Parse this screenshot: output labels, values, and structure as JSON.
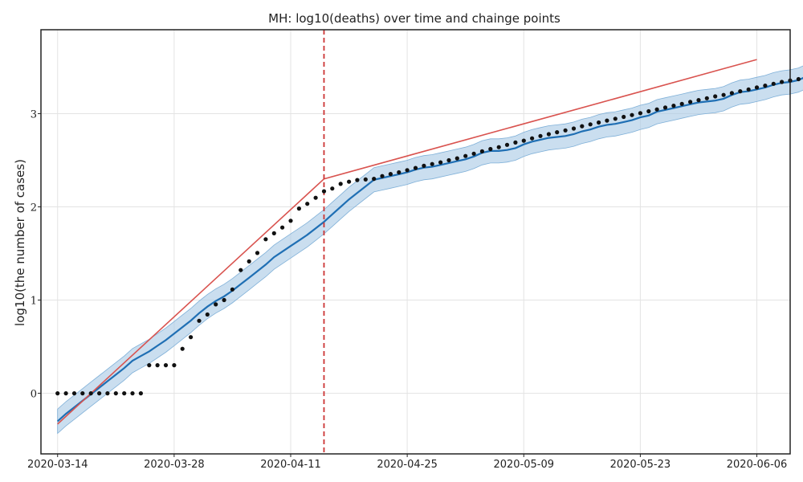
{
  "chart_data": {
    "type": "line",
    "title": "MH: log10(deaths) over time and chainge points",
    "xlabel": "",
    "ylabel": "log10(the number of cases)",
    "x_tick_labels": [
      "2020-03-14",
      "2020-03-28",
      "2020-04-11",
      "2020-04-25",
      "2020-05-09",
      "2020-05-23",
      "2020-06-06"
    ],
    "x_range": [
      "2020-03-12",
      "2020-06-10"
    ],
    "y_tick_labels": [
      "0",
      "1",
      "2",
      "3"
    ],
    "ylim": [
      -0.65,
      3.9
    ],
    "grid": true,
    "changepoint": "2020-04-15",
    "colors": {
      "observed": "#111111",
      "forecast": "#1f6fb4",
      "trend": "#d9534f",
      "interval": "#aecde6",
      "changepoint": "#cc3333"
    },
    "observed": {
      "start": "2020-03-14",
      "y": [
        0,
        0,
        0,
        0,
        0,
        0,
        0,
        0,
        0,
        0,
        0,
        0.301,
        0.301,
        0.301,
        0.301,
        0.477,
        0.602,
        0.778,
        0.845,
        0.954,
        1.0,
        1.114,
        1.322,
        1.415,
        1.505,
        1.653,
        1.716,
        1.778,
        1.851,
        1.982,
        2.033,
        2.097,
        2.167,
        2.196,
        2.246,
        2.27,
        2.288,
        2.294,
        2.301,
        2.33,
        2.352,
        2.37,
        2.394,
        2.417,
        2.44,
        2.459,
        2.477,
        2.5,
        2.52,
        2.545,
        2.57,
        2.595,
        2.62,
        2.64,
        2.665,
        2.69,
        2.71,
        2.735,
        2.76,
        2.78,
        2.8,
        2.82,
        2.84,
        2.865,
        2.885,
        2.905,
        2.925,
        2.945,
        2.965,
        2.985,
        3.005,
        3.025,
        3.045,
        3.065,
        3.085,
        3.105,
        3.125,
        3.145,
        3.165,
        3.185,
        3.2,
        3.22,
        3.24,
        3.26,
        3.28,
        3.3,
        3.32,
        3.34,
        3.355,
        3.37
      ]
    },
    "forecast": {
      "start": "2020-03-14",
      "y": [
        -0.3,
        -0.22,
        -0.15,
        -0.08,
        -0.01,
        0.06,
        0.13,
        0.2,
        0.27,
        0.35,
        0.4,
        0.45,
        0.51,
        0.57,
        0.64,
        0.71,
        0.78,
        0.86,
        0.93,
        0.99,
        1.04,
        1.1,
        1.17,
        1.24,
        1.31,
        1.38,
        1.46,
        1.52,
        1.58,
        1.64,
        1.7,
        1.77,
        1.84,
        1.92,
        2.0,
        2.08,
        2.15,
        2.22,
        2.29,
        2.31,
        2.33,
        2.35,
        2.37,
        2.4,
        2.42,
        2.43,
        2.45,
        2.47,
        2.49,
        2.51,
        2.54,
        2.58,
        2.6,
        2.6,
        2.61,
        2.63,
        2.67,
        2.7,
        2.72,
        2.74,
        2.75,
        2.76,
        2.78,
        2.81,
        2.83,
        2.86,
        2.88,
        2.89,
        2.91,
        2.93,
        2.96,
        2.98,
        3.02,
        3.04,
        3.06,
        3.08,
        3.1,
        3.12,
        3.13,
        3.14,
        3.16,
        3.2,
        3.23,
        3.24,
        3.26,
        3.28,
        3.31,
        3.33,
        3.34,
        3.36,
        3.4,
        3.42,
        3.42,
        3.43,
        3.45,
        3.47,
        3.5,
        3.52,
        3.56,
        3.58,
        3.58,
        3.59
      ]
    },
    "interval_halfwidth": 0.13,
    "trend": {
      "points": [
        {
          "x": "2020-03-14",
          "y": -0.33
        },
        {
          "x": "2020-04-15",
          "y": 2.3
        },
        {
          "x": "2020-06-06",
          "y": 3.58
        }
      ]
    }
  }
}
